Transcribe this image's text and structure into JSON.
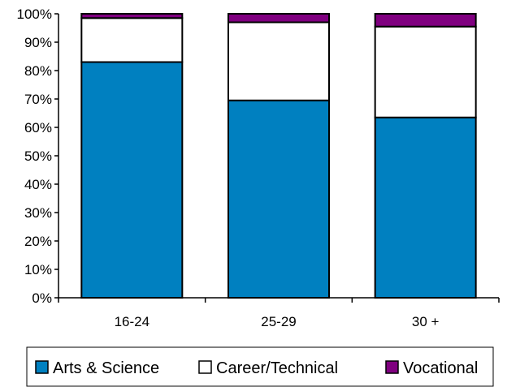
{
  "chart_data": {
    "type": "bar",
    "stacked": true,
    "percent_stacked": true,
    "categories": [
      "16-24",
      "25-29",
      "30 +"
    ],
    "series": [
      {
        "name": "Arts & Science",
        "values": [
          83,
          69.5,
          63.5
        ],
        "color": "#0080c0"
      },
      {
        "name": "Career/Technical",
        "values": [
          15.5,
          27.5,
          32
        ],
        "color": "#ffffff"
      },
      {
        "name": "Vocational",
        "values": [
          1.5,
          3,
          4.5
        ],
        "color": "#800080"
      }
    ],
    "y_ticks": [
      "0%",
      "10%",
      "20%",
      "30%",
      "40%",
      "50%",
      "60%",
      "70%",
      "80%",
      "90%",
      "100%"
    ],
    "ylim": [
      0,
      100
    ],
    "grid": false,
    "legend_position": "bottom"
  }
}
